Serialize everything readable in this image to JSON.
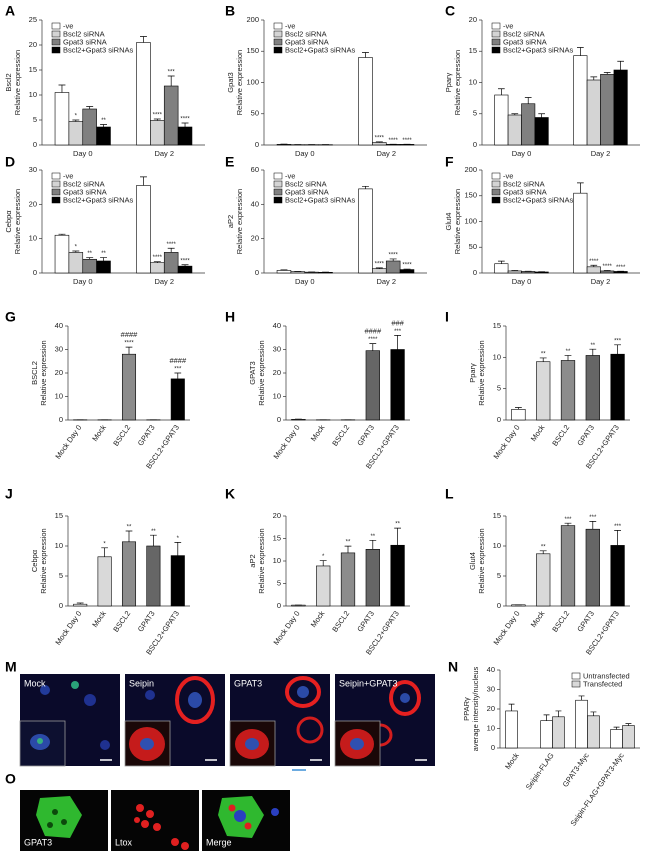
{
  "chart_data": [
    {
      "type": "bar",
      "panel": "A",
      "ylabel": [
        "Bscl2",
        "Relative expression"
      ],
      "categories": [
        "Day 0",
        "Day 2"
      ],
      "ylim": [
        0,
        25
      ],
      "yticks": [
        0,
        5,
        10,
        15,
        20,
        25
      ],
      "legend": "upper left",
      "series": [
        {
          "name": "-ve",
          "color": "#ffffff",
          "values": [
            10.5,
            20.5
          ],
          "errors": [
            1.5,
            1.2
          ],
          "stars": [
            null,
            null
          ]
        },
        {
          "name": "Bscl2 siRNA",
          "color": "#d4d4d4",
          "values": [
            4.7,
            4.9
          ],
          "errors": [
            0.3,
            0.3
          ],
          "stars": [
            "*",
            "****"
          ]
        },
        {
          "name": "Gpat3 siRNA",
          "color": "#808080",
          "values": [
            7.2,
            11.8
          ],
          "errors": [
            0.5,
            2
          ],
          "stars": [
            null,
            "***"
          ]
        },
        {
          "name": "Bscl2+Gpat3 siRNAs",
          "color": "#000000",
          "values": [
            3.6,
            3.6
          ],
          "errors": [
            0.5,
            0.8
          ],
          "stars": [
            "**",
            "****"
          ]
        }
      ]
    },
    {
      "type": "bar",
      "panel": "B",
      "ylabel": [
        "Gpat3",
        "Relative expression"
      ],
      "categories": [
        "Day 0",
        "Day 2"
      ],
      "ylim": [
        0,
        200
      ],
      "yticks": [
        0,
        50,
        100,
        150,
        200
      ],
      "legend": "upper left",
      "series": [
        {
          "name": "-ve",
          "color": "#ffffff",
          "values": [
            1,
            140
          ],
          "errors": [
            0.5,
            8
          ],
          "stars": [
            null,
            null
          ]
        },
        {
          "name": "Bscl2 siRNA",
          "color": "#d4d4d4",
          "values": [
            0.5,
            4
          ],
          "errors": [
            0.2,
            1
          ],
          "stars": [
            null,
            "****"
          ]
        },
        {
          "name": "Gpat3 siRNA",
          "color": "#808080",
          "values": [
            0.5,
            1
          ],
          "errors": [
            0.2,
            0.3
          ],
          "stars": [
            null,
            "****"
          ]
        },
        {
          "name": "Bscl2+Gpat3 siRNAs",
          "color": "#000000",
          "values": [
            0.5,
            1
          ],
          "errors": [
            0.2,
            0.3
          ],
          "stars": [
            null,
            "****"
          ]
        }
      ]
    },
    {
      "type": "bar",
      "panel": "C",
      "ylabel": [
        "Pparγ",
        "Relative expression"
      ],
      "categories": [
        "Day 0",
        "Day 2"
      ],
      "ylim": [
        0,
        20
      ],
      "yticks": [
        0,
        5,
        10,
        15,
        20
      ],
      "legend": "upper left",
      "series": [
        {
          "name": "-ve",
          "color": "#ffffff",
          "values": [
            8,
            14.3
          ],
          "errors": [
            1,
            1.3
          ]
        },
        {
          "name": "Bscl2 siRNA",
          "color": "#d4d4d4",
          "values": [
            4.8,
            10.4
          ],
          "errors": [
            0.2,
            0.5
          ]
        },
        {
          "name": "Gpat3 siRNA",
          "color": "#808080",
          "values": [
            6.6,
            11.3
          ],
          "errors": [
            1,
            0.3
          ]
        },
        {
          "name": "Bscl2+Gpat3 siRNAs",
          "color": "#000000",
          "values": [
            4.4,
            12
          ],
          "errors": [
            0.6,
            1.4
          ]
        }
      ]
    },
    {
      "type": "bar",
      "panel": "D",
      "ylabel": [
        "Cebpα",
        "Relative expression"
      ],
      "categories": [
        "Day 0",
        "Day 2"
      ],
      "ylim": [
        0,
        30
      ],
      "yticks": [
        0,
        10,
        20,
        30
      ],
      "legend": "upper left",
      "series": [
        {
          "name": "-ve",
          "color": "#ffffff",
          "values": [
            11,
            25.5
          ],
          "errors": [
            0.3,
            2.5
          ],
          "stars": [
            null,
            null
          ]
        },
        {
          "name": "Bscl2 siRNA",
          "color": "#d4d4d4",
          "values": [
            6,
            3
          ],
          "errors": [
            0.4,
            0.3
          ],
          "stars": [
            "*",
            "****"
          ]
        },
        {
          "name": "Gpat3 siRNA",
          "color": "#808080",
          "values": [
            4,
            6
          ],
          "errors": [
            0.5,
            1.2
          ],
          "stars": [
            "**",
            "****"
          ]
        },
        {
          "name": "Bscl2+Gpat3 siRNAs",
          "color": "#000000",
          "values": [
            3.5,
            2
          ],
          "errors": [
            1,
            0.4
          ],
          "stars": [
            "**",
            "****"
          ]
        }
      ]
    },
    {
      "type": "bar",
      "panel": "E",
      "ylabel": [
        "aP2",
        "Relative expression"
      ],
      "categories": [
        "Day 0",
        "Day 2"
      ],
      "ylim": [
        0,
        60
      ],
      "yticks": [
        0,
        20,
        40,
        60
      ],
      "legend": "upper left",
      "series": [
        {
          "name": "-ve",
          "color": "#ffffff",
          "values": [
            1.5,
            49
          ],
          "errors": [
            0.3,
            1.5
          ],
          "stars": [
            null,
            null
          ]
        },
        {
          "name": "Bscl2 siRNA",
          "color": "#d4d4d4",
          "values": [
            0.8,
            2.5
          ],
          "errors": [
            0.1,
            0.5
          ],
          "stars": [
            null,
            "****"
          ]
        },
        {
          "name": "Gpat3 siRNA",
          "color": "#808080",
          "values": [
            0.5,
            7
          ],
          "errors": [
            0.1,
            1.2
          ],
          "stars": [
            null,
            "****"
          ]
        },
        {
          "name": "Bscl2+Gpat3 siRNAs",
          "color": "#000000",
          "values": [
            0.4,
            2
          ],
          "errors": [
            0.1,
            0.3
          ],
          "stars": [
            null,
            "****"
          ]
        }
      ]
    },
    {
      "type": "bar",
      "panel": "F",
      "ylabel": [
        "Glut4",
        "Relative expression"
      ],
      "categories": [
        "Day 0",
        "Day 2"
      ],
      "ylim": [
        0,
        200
      ],
      "yticks": [
        0,
        50,
        100,
        150,
        200
      ],
      "legend": "upper left",
      "series": [
        {
          "name": "-ve",
          "color": "#ffffff",
          "values": [
            18,
            155
          ],
          "errors": [
            5,
            20
          ],
          "stars": [
            null,
            null
          ]
        },
        {
          "name": "Bscl2 siRNA",
          "color": "#d4d4d4",
          "values": [
            4,
            12
          ],
          "errors": [
            1,
            3
          ],
          "stars": [
            null,
            "****"
          ]
        },
        {
          "name": "Gpat3 siRNA",
          "color": "#808080",
          "values": [
            3,
            4
          ],
          "errors": [
            0.5,
            1
          ],
          "stars": [
            null,
            "****"
          ]
        },
        {
          "name": "Bscl2+Gpat3 siRNAs",
          "color": "#000000",
          "values": [
            2,
            3
          ],
          "errors": [
            0.5,
            0.5
          ],
          "stars": [
            null,
            "****"
          ]
        }
      ]
    },
    {
      "type": "bar",
      "panel": "G",
      "ylabel": [
        "BSCL2",
        "Relative expression"
      ],
      "categories": [
        "Mock Day 0",
        "Mock",
        "BSCL2",
        "GPAT3",
        "BSCL2+GPAT3"
      ],
      "values": [
        0.1,
        0.1,
        28,
        0.1,
        17.5
      ],
      "errors": [
        0,
        0,
        3,
        0,
        2.5
      ],
      "colors": [
        "#ffffff",
        "#d9d9d9",
        "#8c8c8c",
        "#666666",
        "#000000"
      ],
      "stars": [
        null,
        null,
        "****",
        null,
        "***"
      ],
      "hashes": [
        null,
        null,
        "####",
        null,
        "####"
      ],
      "ylim": [
        0,
        40
      ],
      "yticks": [
        0,
        10,
        20,
        30,
        40
      ]
    },
    {
      "type": "bar",
      "panel": "H",
      "ylabel": [
        "GPAT3",
        "Relative expression"
      ],
      "categories": [
        "Mock Day 0",
        "Mock",
        "BSCL2",
        "GPAT3",
        "BSCL2+GPAT3"
      ],
      "values": [
        0.3,
        0.1,
        0.1,
        29.5,
        30
      ],
      "errors": [
        0.1,
        0,
        0,
        3,
        6
      ],
      "colors": [
        "#ffffff",
        "#d9d9d9",
        "#8c8c8c",
        "#666666",
        "#000000"
      ],
      "stars": [
        null,
        null,
        null,
        "****",
        "***"
      ],
      "hashes": [
        null,
        null,
        null,
        "####",
        "###"
      ],
      "ylim": [
        0,
        40
      ],
      "yticks": [
        0,
        10,
        20,
        30,
        40
      ]
    },
    {
      "type": "bar",
      "panel": "I",
      "ylabel": [
        "Pparγ",
        "Relative expression"
      ],
      "categories": [
        "Mock Day 0",
        "Mock",
        "BSCL2",
        "GPAT3",
        "BSCL2+GPAT3"
      ],
      "values": [
        1.7,
        9.3,
        9.5,
        10.3,
        10.5
      ],
      "errors": [
        0.3,
        0.6,
        0.8,
        1,
        1.5
      ],
      "colors": [
        "#ffffff",
        "#d9d9d9",
        "#8c8c8c",
        "#666666",
        "#000000"
      ],
      "stars": [
        null,
        "**",
        "**",
        "**",
        "***"
      ],
      "ylim": [
        0,
        15
      ],
      "yticks": [
        0,
        5,
        10,
        15
      ]
    },
    {
      "type": "bar",
      "panel": "J",
      "ylabel": [
        "Cebpα",
        "Relative expression"
      ],
      "categories": [
        "Mock Day 0",
        "Mock",
        "BSCL2",
        "GPAT3",
        "BSCL2+GPAT3"
      ],
      "values": [
        0.3,
        8.2,
        10.7,
        10,
        8.4
      ],
      "errors": [
        0.2,
        1.5,
        1.8,
        1.8,
        2.2
      ],
      "colors": [
        "#ffffff",
        "#d9d9d9",
        "#8c8c8c",
        "#666666",
        "#000000"
      ],
      "stars": [
        null,
        "*",
        "**",
        "**",
        "*"
      ],
      "ylim": [
        0,
        15
      ],
      "yticks": [
        0,
        5,
        10,
        15
      ]
    },
    {
      "type": "bar",
      "panel": "K",
      "ylabel": [
        "aP2",
        "Relative expression"
      ],
      "categories": [
        "Mock Day 0",
        "Mock",
        "BSCL2",
        "GPAT3",
        "BSCL2+GPAT3"
      ],
      "values": [
        0.2,
        8.9,
        11.8,
        12.6,
        13.5
      ],
      "errors": [
        0,
        1.2,
        1.5,
        2,
        3.8
      ],
      "colors": [
        "#ffffff",
        "#d9d9d9",
        "#8c8c8c",
        "#666666",
        "#000000"
      ],
      "stars": [
        null,
        "*",
        "**",
        "**",
        "**"
      ],
      "ylim": [
        0,
        20
      ],
      "yticks": [
        0,
        5,
        10,
        15,
        20
      ]
    },
    {
      "type": "bar",
      "panel": "L",
      "ylabel": [
        "Glut4",
        "Relative expression"
      ],
      "categories": [
        "Mock Day 0",
        "Mock",
        "BSCL2",
        "GPAT3",
        "BSCL2+GPAT3"
      ],
      "values": [
        0.2,
        8.7,
        13.4,
        12.8,
        10.1
      ],
      "errors": [
        0,
        0.5,
        0.4,
        1.3,
        2.5
      ],
      "colors": [
        "#ffffff",
        "#d9d9d9",
        "#8c8c8c",
        "#666666",
        "#000000"
      ],
      "stars": [
        null,
        "**",
        "***",
        "***",
        "***"
      ],
      "ylim": [
        0,
        15
      ],
      "yticks": [
        0,
        5,
        10,
        15
      ]
    },
    {
      "type": "bar",
      "panel": "N",
      "ylabel": [
        "PPARγ",
        "average intensity/nucleus"
      ],
      "categories": [
        "Mock",
        "Seipin-FLAG",
        "GPAT3-Myc",
        "Seipin-FLAG+GPAT3-Myc"
      ],
      "ylim": [
        0,
        40
      ],
      "yticks": [
        0,
        10,
        20,
        30,
        40
      ],
      "legend": "upper right",
      "series": [
        {
          "name": "Untransfected",
          "color": "#ffffff",
          "values": [
            19,
            14,
            24.5,
            9.5
          ],
          "errors": [
            3.5,
            3,
            2.2,
            1.2
          ]
        },
        {
          "name": "Transfected",
          "color": "#d9d9d9",
          "values": [
            null,
            16,
            16.5,
            11.5
          ],
          "errors": [
            null,
            3,
            2,
            1
          ]
        }
      ]
    }
  ],
  "images": {
    "M": {
      "panel": "M",
      "labels": [
        "Mock",
        "Seipin",
        "GPAT3",
        "Seipin+GPAT3"
      ]
    },
    "O": {
      "panel": "O",
      "labels": [
        "GPAT3",
        "Ltox",
        "Merge"
      ]
    }
  }
}
